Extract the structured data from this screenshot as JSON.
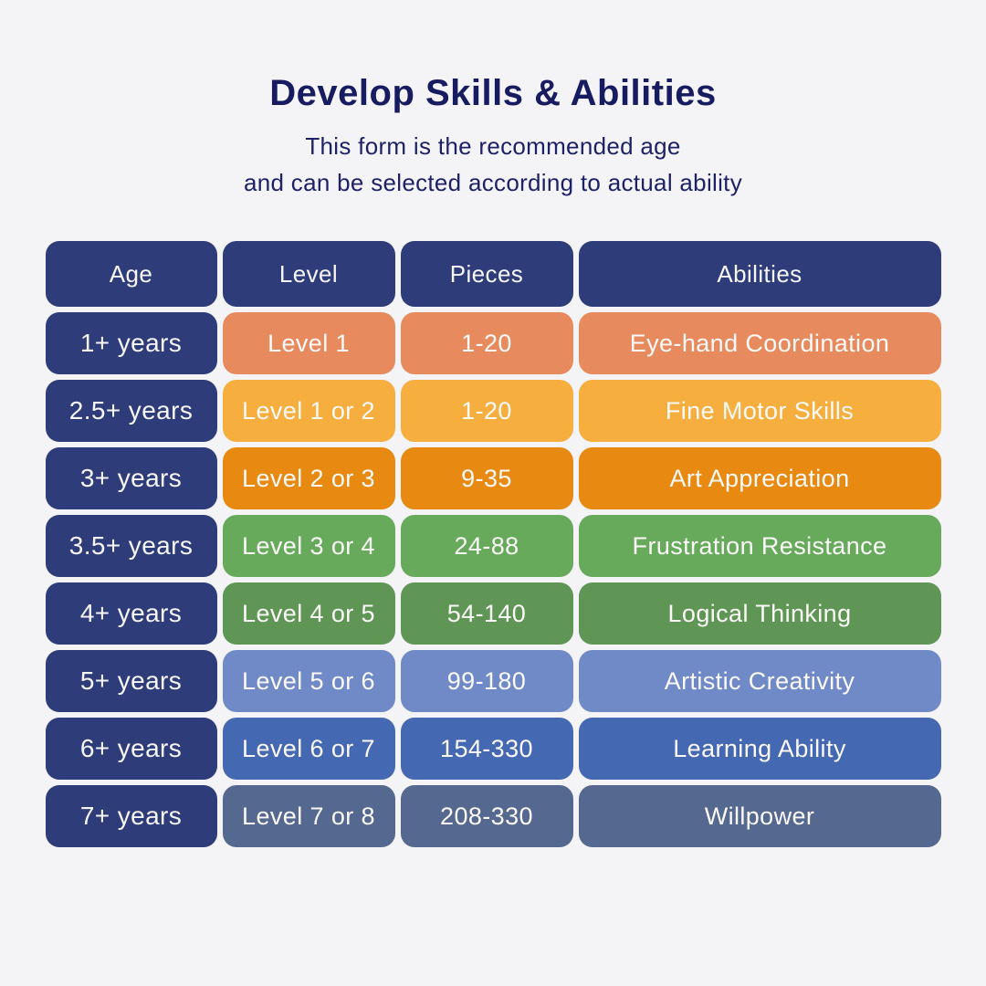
{
  "page": {
    "background_color": "#f4f4f6",
    "title_color": "#171b60",
    "navy_color": "#2e3c7a",
    "cell_text_color": "#fbfaf8"
  },
  "header": {
    "title": "Develop Skills & Abilities",
    "subtitle_line1": "This form is the recommended age",
    "subtitle_line2": "and can be  selected according to actual ability"
  },
  "chart_data": {
    "type": "table",
    "title": "Develop Skills & Abilities",
    "columns": [
      "Age",
      "Level",
      "Pieces",
      "Abilities"
    ],
    "header_color": "#2e3c7a",
    "age_column_color": "#2e3c7a",
    "rows": [
      {
        "age": "1+ years",
        "level": "Level 1",
        "pieces": "1-20",
        "ability": "Eye-hand Coordination",
        "row_color": "#e78a5e"
      },
      {
        "age": "2.5+ years",
        "level": "Level 1 or 2",
        "pieces": "1-20",
        "ability": "Fine Motor Skills",
        "row_color": "#f6ae3e"
      },
      {
        "age": "3+ years",
        "level": "Level 2 or 3",
        "pieces": "9-35",
        "ability": "Art Appreciation",
        "row_color": "#e88a12"
      },
      {
        "age": "3.5+ years",
        "level": "Level 3 or 4",
        "pieces": "24-88",
        "ability": "Frustration Resistance",
        "row_color": "#67aa5c"
      },
      {
        "age": "4+ years",
        "level": "Level 4 or 5",
        "pieces": "54-140",
        "ability": "Logical Thinking",
        "row_color": "#5f9655"
      },
      {
        "age": "5+ years",
        "level": "Level 5 or 6",
        "pieces": "99-180",
        "ability": "Artistic Creativity",
        "row_color": "#6f8ac6"
      },
      {
        "age": "6+ years",
        "level": "Level 6 or 7",
        "pieces": "154-330",
        "ability": "Learning Ability",
        "row_color": "#4568b2"
      },
      {
        "age": "7+ years",
        "level": "Level 7 or 8",
        "pieces": "208-330",
        "ability": "Willpower",
        "row_color": "#55688f"
      }
    ]
  }
}
